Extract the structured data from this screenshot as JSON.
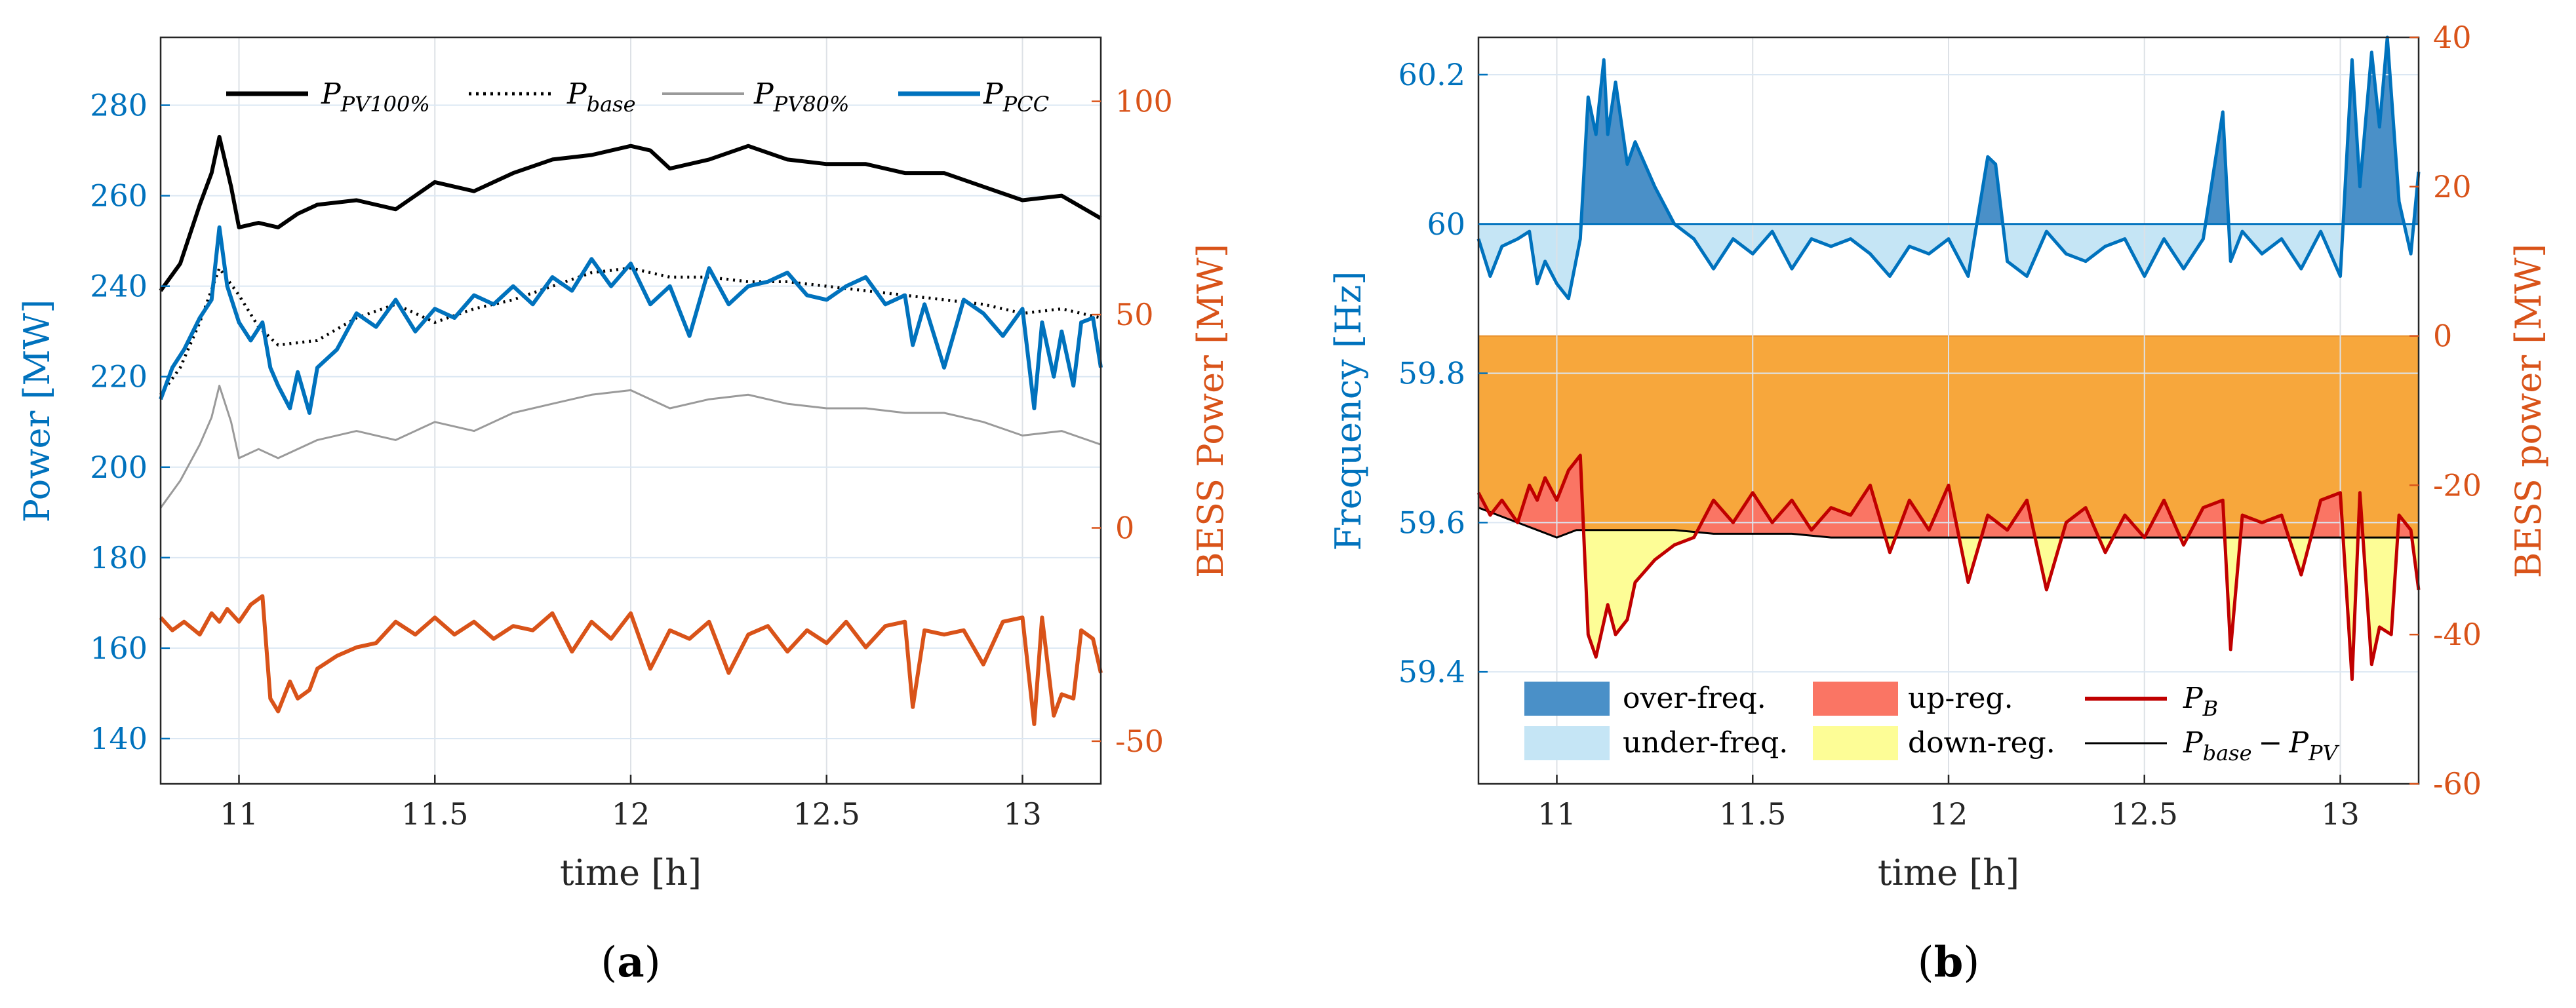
{
  "chart_data": [
    {
      "type": "line",
      "panel_label": "a",
      "xlabel": "time [h]",
      "ylabel_left": "Power [MW]",
      "ylabel_right": "BESS Power [MW]",
      "xlim": [
        10.8,
        13.2
      ],
      "ylim_left": [
        130,
        295
      ],
      "ylim_right": [
        -60,
        115
      ],
      "xticks": [
        11,
        11.5,
        12,
        12.5,
        13
      ],
      "xtick_labels": [
        "11",
        "11.5",
        "12",
        "12.5",
        "13"
      ],
      "yticks_left": [
        140,
        160,
        180,
        200,
        220,
        240,
        260,
        280
      ],
      "yticks_right": [
        -50,
        0,
        50,
        100
      ],
      "ytick_labels_right": [
        "-50",
        "0",
        "50",
        "100"
      ],
      "grid": true,
      "legend": {
        "placement": "top",
        "entries": [
          {
            "label": "P_PV100%",
            "base": "P",
            "sub": "PV100%",
            "color": "#000000",
            "style": "solid"
          },
          {
            "label": "P_base",
            "base": "P",
            "sub": "base",
            "color": "#000000",
            "style": "dotted"
          },
          {
            "label": "P_PV80%",
            "base": "P",
            "sub": "PV80%",
            "color": "#9a9a9a",
            "style": "solid"
          },
          {
            "label": "P_PCC",
            "base": "P",
            "sub": "PCC",
            "color": "#0072BD",
            "style": "solid"
          }
        ]
      },
      "series": [
        {
          "name": "P_PV100%",
          "axis": "left",
          "color": "#000000",
          "style": "solid",
          "x": [
            10.8,
            10.85,
            10.9,
            10.93,
            10.95,
            10.98,
            11.0,
            11.05,
            11.1,
            11.15,
            11.2,
            11.3,
            11.4,
            11.5,
            11.6,
            11.7,
            11.8,
            11.9,
            12.0,
            12.05,
            12.1,
            12.2,
            12.3,
            12.4,
            12.5,
            12.6,
            12.7,
            12.8,
            12.9,
            13.0,
            13.1,
            13.2
          ],
          "y": [
            239,
            245,
            258,
            265,
            273,
            262,
            253,
            254,
            253,
            256,
            258,
            259,
            257,
            263,
            261,
            265,
            268,
            269,
            271,
            270,
            266,
            268,
            271,
            268,
            267,
            267,
            265,
            265,
            262,
            259,
            260,
            255
          ]
        },
        {
          "name": "P_base",
          "axis": "left",
          "color": "#000000",
          "style": "dotted",
          "x": [
            10.8,
            10.85,
            10.9,
            10.95,
            11.0,
            11.05,
            11.1,
            11.2,
            11.3,
            11.4,
            11.5,
            11.6,
            11.7,
            11.8,
            11.9,
            12.0,
            12.1,
            12.2,
            12.3,
            12.4,
            12.5,
            12.6,
            12.7,
            12.8,
            12.9,
            13.0,
            13.1,
            13.2
          ],
          "y": [
            216,
            222,
            232,
            244,
            238,
            231,
            227,
            228,
            233,
            236,
            232,
            235,
            237,
            240,
            243,
            244,
            242,
            242,
            241,
            241,
            240,
            239,
            238,
            237,
            236,
            234,
            235,
            233
          ]
        },
        {
          "name": "P_PV80%",
          "axis": "left",
          "color": "#9a9a9a",
          "style": "solid",
          "x": [
            10.8,
            10.85,
            10.9,
            10.93,
            10.95,
            10.98,
            11.0,
            11.05,
            11.1,
            11.2,
            11.3,
            11.4,
            11.5,
            11.6,
            11.7,
            11.8,
            11.9,
            12.0,
            12.1,
            12.2,
            12.3,
            12.4,
            12.5,
            12.6,
            12.7,
            12.8,
            12.9,
            13.0,
            13.1,
            13.2
          ],
          "y": [
            191,
            197,
            205,
            211,
            218,
            210,
            202,
            204,
            202,
            206,
            208,
            206,
            210,
            208,
            212,
            214,
            216,
            217,
            213,
            215,
            216,
            214,
            213,
            213,
            212,
            212,
            210,
            207,
            208,
            205
          ]
        },
        {
          "name": "P_PCC",
          "axis": "left",
          "color": "#0072BD",
          "style": "solid",
          "x": [
            10.8,
            10.83,
            10.86,
            10.9,
            10.93,
            10.95,
            10.97,
            11.0,
            11.03,
            11.06,
            11.08,
            11.1,
            11.13,
            11.15,
            11.18,
            11.2,
            11.25,
            11.3,
            11.35,
            11.4,
            11.45,
            11.5,
            11.55,
            11.6,
            11.65,
            11.7,
            11.75,
            11.8,
            11.85,
            11.9,
            11.95,
            12.0,
            12.05,
            12.1,
            12.15,
            12.2,
            12.25,
            12.3,
            12.35,
            12.4,
            12.45,
            12.5,
            12.55,
            12.6,
            12.65,
            12.7,
            12.72,
            12.75,
            12.8,
            12.85,
            12.9,
            12.95,
            13.0,
            13.03,
            13.05,
            13.08,
            13.1,
            13.13,
            13.15,
            13.18,
            13.2
          ],
          "y": [
            215,
            222,
            226,
            233,
            237,
            253,
            240,
            232,
            228,
            232,
            222,
            218,
            213,
            221,
            212,
            222,
            226,
            234,
            231,
            237,
            230,
            235,
            233,
            238,
            236,
            240,
            236,
            242,
            239,
            246,
            240,
            245,
            236,
            240,
            229,
            244,
            236,
            240,
            241,
            243,
            238,
            237,
            240,
            242,
            236,
            238,
            227,
            236,
            222,
            237,
            234,
            229,
            235,
            213,
            232,
            220,
            230,
            218,
            232,
            233,
            222
          ]
        },
        {
          "name": "P_B",
          "axis": "right",
          "color": "#D95319",
          "style": "solid",
          "x": [
            10.8,
            10.83,
            10.86,
            10.9,
            10.93,
            10.95,
            10.97,
            11.0,
            11.03,
            11.06,
            11.08,
            11.1,
            11.13,
            11.15,
            11.18,
            11.2,
            11.25,
            11.3,
            11.35,
            11.4,
            11.45,
            11.5,
            11.55,
            11.6,
            11.65,
            11.7,
            11.75,
            11.8,
            11.85,
            11.9,
            11.95,
            12.0,
            12.05,
            12.1,
            12.15,
            12.2,
            12.25,
            12.3,
            12.35,
            12.4,
            12.45,
            12.5,
            12.55,
            12.6,
            12.65,
            12.7,
            12.72,
            12.75,
            12.8,
            12.85,
            12.9,
            12.95,
            13.0,
            13.03,
            13.05,
            13.08,
            13.1,
            13.13,
            13.15,
            13.18,
            13.2
          ],
          "y": [
            -21,
            -24,
            -22,
            -25,
            -20,
            -22,
            -19,
            -22,
            -18,
            -16,
            -40,
            -43,
            -36,
            -40,
            -38,
            -33,
            -30,
            -28,
            -27,
            -22,
            -25,
            -21,
            -25,
            -22,
            -26,
            -23,
            -24,
            -20,
            -29,
            -22,
            -26,
            -20,
            -33,
            -24,
            -26,
            -22,
            -34,
            -25,
            -23,
            -29,
            -24,
            -27,
            -22,
            -28,
            -23,
            -22,
            -42,
            -24,
            -25,
            -24,
            -32,
            -22,
            -21,
            -46,
            -21,
            -44,
            -39,
            -40,
            -24,
            -26,
            -34
          ]
        }
      ]
    },
    {
      "type": "line",
      "panel_label": "b",
      "xlabel": "time [h]",
      "ylabel_left": "Frequency [Hz]",
      "ylabel_right": "BESS power [MW]",
      "xlim": [
        10.8,
        13.2
      ],
      "ylim_left": [
        59.25,
        60.25
      ],
      "ylim_right": [
        -60,
        40
      ],
      "xticks": [
        11,
        11.5,
        12,
        12.5,
        13
      ],
      "xtick_labels": [
        "11",
        "11.5",
        "12",
        "12.5",
        "13"
      ],
      "yticks_left": [
        59.4,
        59.6,
        59.8,
        60,
        60.2
      ],
      "ytick_labels_left": [
        "59.4",
        "59.6",
        "59.8",
        "60",
        "60.2"
      ],
      "yticks_right": [
        -60,
        -40,
        -20,
        0,
        20,
        40
      ],
      "ytick_labels_right": [
        "-60",
        "-40",
        "-20",
        "0",
        "20",
        "40"
      ],
      "grid": true,
      "legend": {
        "placement": "bottom",
        "entries": [
          {
            "label": "over-freq.",
            "color": "#4A90C8",
            "kind": "patch"
          },
          {
            "label": "up-reg.",
            "color": "#FA7564",
            "kind": "patch"
          },
          {
            "label": "P_B",
            "base": "P",
            "sub": "B",
            "color": "#C00000",
            "kind": "line"
          },
          {
            "label": "under-freq.",
            "color": "#C5E5F5",
            "kind": "patch"
          },
          {
            "label": "down-reg.",
            "color": "#FDFD96",
            "kind": "patch"
          },
          {
            "label": "P_base − P_PV",
            "base": "P",
            "sub": "base",
            "minus": "−",
            "base2": "P",
            "sub2": "PV",
            "color": "#000000",
            "kind": "line"
          }
        ]
      },
      "nominal_frequency": 60,
      "baseline_band": {
        "from": -27,
        "to": 0,
        "color": "#F7A73C"
      },
      "series": [
        {
          "name": "Frequency",
          "axis": "left",
          "color": "#0072BD",
          "x": [
            10.8,
            10.83,
            10.86,
            10.9,
            10.93,
            10.95,
            10.97,
            11.0,
            11.03,
            11.06,
            11.08,
            11.1,
            11.12,
            11.13,
            11.15,
            11.18,
            11.2,
            11.25,
            11.3,
            11.35,
            11.4,
            11.45,
            11.5,
            11.55,
            11.6,
            11.65,
            11.7,
            11.75,
            11.8,
            11.85,
            11.9,
            11.95,
            12.0,
            12.05,
            12.1,
            12.12,
            12.15,
            12.2,
            12.25,
            12.3,
            12.35,
            12.4,
            12.45,
            12.5,
            12.55,
            12.6,
            12.65,
            12.7,
            12.72,
            12.75,
            12.8,
            12.85,
            12.9,
            12.95,
            13.0,
            13.03,
            13.05,
            13.08,
            13.1,
            13.12,
            13.15,
            13.18,
            13.2
          ],
          "y": [
            59.98,
            59.93,
            59.97,
            59.98,
            59.99,
            59.92,
            59.95,
            59.92,
            59.9,
            59.98,
            60.17,
            60.12,
            60.22,
            60.12,
            60.19,
            60.08,
            60.11,
            60.05,
            60.0,
            59.98,
            59.94,
            59.98,
            59.96,
            59.99,
            59.94,
            59.98,
            59.97,
            59.98,
            59.96,
            59.93,
            59.97,
            59.96,
            59.98,
            59.93,
            60.09,
            60.08,
            59.95,
            59.93,
            59.99,
            59.96,
            59.95,
            59.97,
            59.98,
            59.93,
            59.98,
            59.94,
            59.98,
            60.15,
            59.95,
            59.99,
            59.96,
            59.98,
            59.94,
            59.99,
            59.93,
            60.22,
            60.05,
            60.23,
            60.13,
            60.25,
            60.03,
            59.96,
            60.07
          ]
        },
        {
          "name": "P_B",
          "axis": "right",
          "color": "#C00000",
          "x": [
            10.8,
            10.83,
            10.86,
            10.9,
            10.93,
            10.95,
            10.97,
            11.0,
            11.03,
            11.06,
            11.08,
            11.1,
            11.13,
            11.15,
            11.18,
            11.2,
            11.25,
            11.3,
            11.35,
            11.4,
            11.45,
            11.5,
            11.55,
            11.6,
            11.65,
            11.7,
            11.75,
            11.8,
            11.85,
            11.9,
            11.95,
            12.0,
            12.05,
            12.1,
            12.15,
            12.2,
            12.25,
            12.3,
            12.35,
            12.4,
            12.45,
            12.5,
            12.55,
            12.6,
            12.65,
            12.7,
            12.72,
            12.75,
            12.8,
            12.85,
            12.9,
            12.95,
            13.0,
            13.03,
            13.05,
            13.08,
            13.1,
            13.13,
            13.15,
            13.18,
            13.2
          ],
          "y": [
            -21,
            -24,
            -22,
            -25,
            -20,
            -22,
            -19,
            -22,
            -18,
            -16,
            -40,
            -43,
            -36,
            -40,
            -38,
            -33,
            -30,
            -28,
            -27,
            -22,
            -25,
            -21,
            -25,
            -22,
            -26,
            -23,
            -24,
            -20,
            -29,
            -22,
            -26,
            -20,
            -33,
            -24,
            -26,
            -22,
            -34,
            -25,
            -23,
            -29,
            -24,
            -27,
            -22,
            -28,
            -23,
            -22,
            -42,
            -24,
            -25,
            -24,
            -32,
            -22,
            -21,
            -46,
            -21,
            -44,
            -39,
            -40,
            -24,
            -26,
            -34
          ]
        },
        {
          "name": "P_base − P_PV",
          "axis": "right",
          "color": "#000000",
          "x": [
            10.8,
            10.85,
            10.9,
            10.95,
            11.0,
            11.05,
            11.1,
            11.2,
            11.3,
            11.4,
            11.5,
            11.6,
            11.7,
            11.8,
            11.9,
            12.0,
            12.1,
            12.2,
            12.3,
            12.4,
            12.5,
            12.6,
            12.7,
            12.8,
            12.9,
            13.0,
            13.1,
            13.2
          ],
          "y": [
            -23,
            -24,
            -25,
            -26,
            -27,
            -26,
            -26,
            -26,
            -26,
            -26.5,
            -26.5,
            -26.5,
            -27,
            -27,
            -27,
            -27,
            -27,
            -27,
            -27,
            -27,
            -27,
            -27,
            -27,
            -27,
            -27,
            -27,
            -27,
            -27
          ]
        }
      ]
    }
  ],
  "captions": {
    "a": {
      "open": "(",
      "letter": "a",
      "close": ")"
    },
    "b": {
      "open": "(",
      "letter": "b",
      "close": ")"
    }
  }
}
